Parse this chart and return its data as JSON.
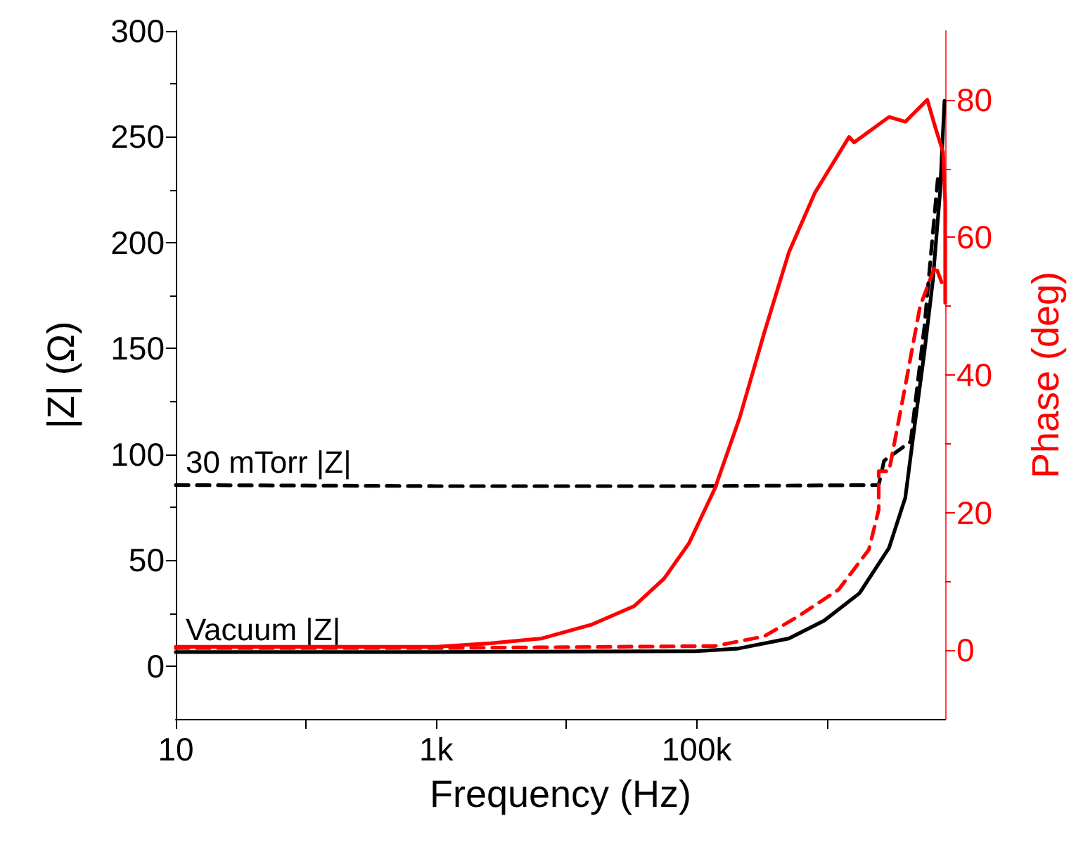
{
  "chart_data": {
    "type": "line",
    "xlabel": "Frequency (Hz)",
    "ylabel": "|Z| (Ω)",
    "y2label": "Phase (deg)",
    "log": "x",
    "xlim": [
      10,
      8100000
    ],
    "xticks": [
      10,
      {
        "value": 100,
        "label": null
      },
      {
        "value": 1000,
        "label": "1k"
      },
      {
        "value": 10000,
        "label": null
      },
      {
        "value": 100000,
        "label": "100k"
      },
      {
        "value": 1000000,
        "label": null
      }
    ],
    "ylim": [
      -25,
      300
    ],
    "yticks": [
      0,
      50,
      100,
      150,
      200,
      250,
      300
    ],
    "y2lim": [
      -10,
      90
    ],
    "y2ticks": [
      0,
      20,
      40,
      60,
      80
    ],
    "marker": "none",
    "series": [
      {
        "color": "#000000",
        "line_style": "solid",
        "x": [
          10,
          1000,
          100000,
          210000,
          510000,
          950000,
          1780000,
          3000000,
          4000000,
          4700000,
          5600000,
          6500000,
          7400000,
          8000000
        ],
        "values": [
          6.6,
          6.6,
          7,
          8.3,
          13,
          21.4,
          34.4,
          55.8,
          79.5,
          112.8,
          148,
          181.6,
          224,
          267
        ]
      },
      {
        "color": "#000000",
        "line_style": "dashed",
        "x": [
          10,
          1000,
          100000,
          2500000,
          2750000,
          4400000,
          5600000,
          7100000
        ],
        "values": [
          85.5,
          85,
          85,
          85.5,
          97,
          106,
          160,
          230
        ]
      },
      {
        "color": "#ff0000",
        "line_style": "solid",
        "axis": "y2",
        "x": [
          10,
          1000,
          2630,
          6460,
          15500,
          33100,
          56200,
          87100,
          138000,
          214000,
          330000,
          510000,
          810000,
          1480000,
          1620000,
          3000000,
          4000000,
          5900000,
          6800000,
          7800000,
          8100000,
          8100000
        ],
        "values": [
          0.5,
          0.5,
          1,
          1.7,
          3.7,
          6.4,
          10.4,
          15.5,
          23.5,
          33.8,
          46.1,
          57.8,
          66.5,
          74.6,
          73.8,
          77.5,
          76.8,
          80,
          76,
          72.4,
          65,
          50.5
        ]
      },
      {
        "color": "#ff0000",
        "line_style": "dashed",
        "axis": "y2",
        "x": [
          10,
          1000,
          138000,
          330000,
          600000,
          1230000,
          2100000,
          2500000,
          2500000,
          3000000,
          4000000,
          5200000,
          6800000,
          8000000
        ],
        "values": [
          0.3,
          0.3,
          0.6,
          2,
          4.9,
          8.8,
          14.6,
          20.4,
          26,
          26,
          38.4,
          50,
          55.9,
          52.4
        ]
      }
    ],
    "annotations": [
      {
        "text": "30 mTorr |Z|",
        "x": 10,
        "y": 85.5
      },
      {
        "text": "Vacuum |Z|",
        "x": 10,
        "y": 6.6
      }
    ]
  }
}
